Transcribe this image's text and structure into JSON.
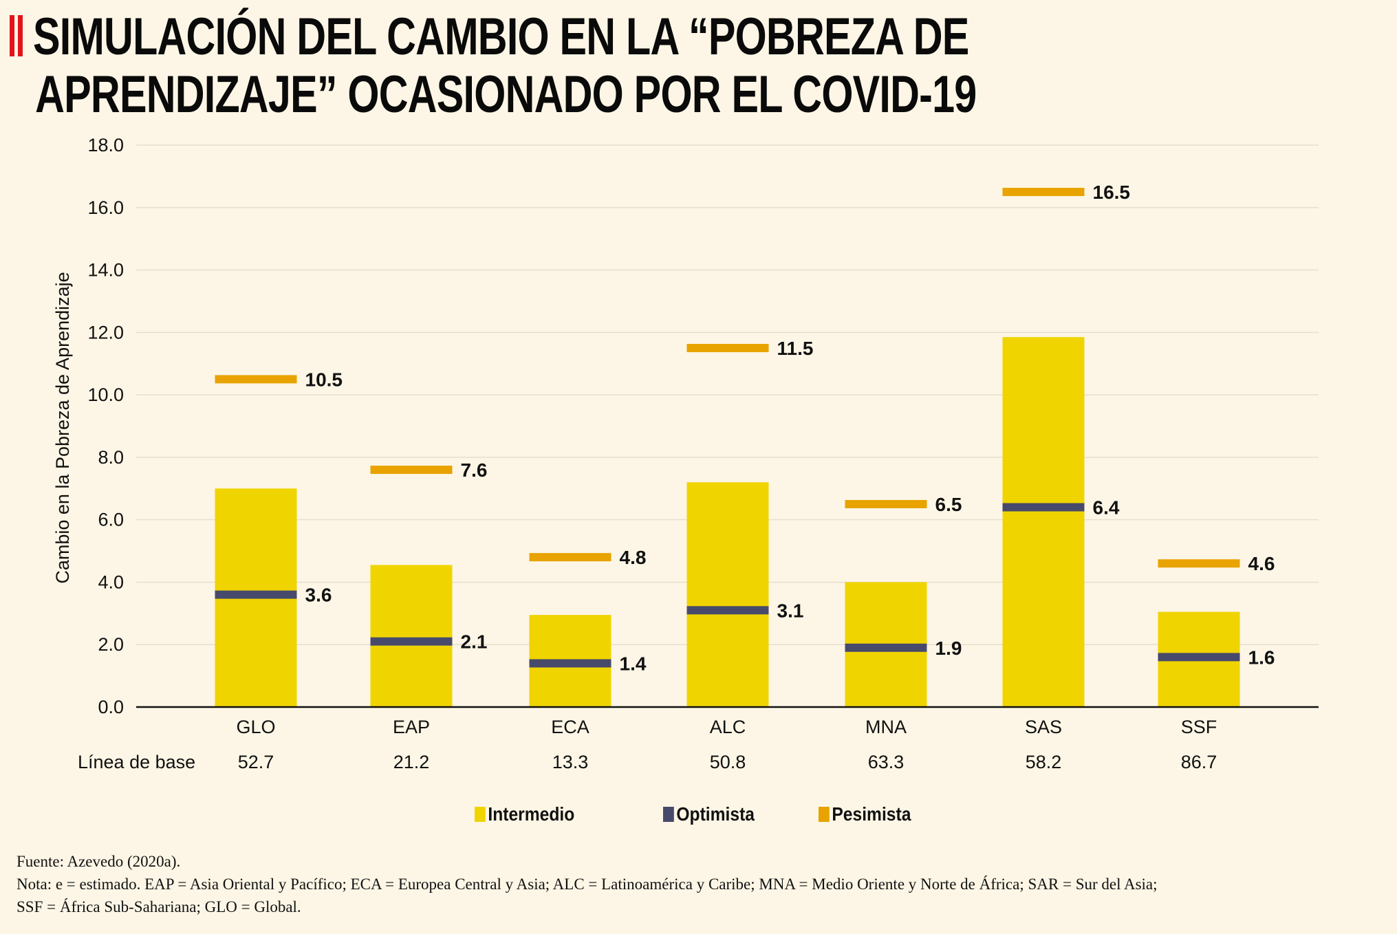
{
  "title_lines": [
    "SIMULACIÓN DEL CAMBIO EN LA “POBREZA DE",
    "APRENDIZAJE” OCASIONADO POR EL COVID-19"
  ],
  "chart_data": {
    "type": "bar",
    "title": "SIMULACIÓN DEL CAMBIO EN LA “POBREZA DE APRENDIZAJE” OCASIONADO POR EL COVID-19",
    "ylabel": "Cambio en la Pobreza de Aprendizaje",
    "xlabel": "",
    "ylim": [
      0,
      18
    ],
    "yticks": [
      "0.0",
      "2.0",
      "4.0",
      "6.0",
      "8.0",
      "10.0",
      "12.0",
      "14.0",
      "16.0",
      "18.0"
    ],
    "grid": true,
    "legend_position": "bottom",
    "categories": [
      "GLO",
      "EAP",
      "ECA",
      "ALC",
      "MNA",
      "SAS",
      "SSF"
    ],
    "baseline_label": "Línea de base",
    "baseline": [
      "52.7",
      "21.2",
      "13.3",
      "50.8",
      "63.3",
      "58.2",
      "86.7"
    ],
    "series": [
      {
        "name": "Intermedio",
        "kind": "bar",
        "color": "#f0d400",
        "values": [
          7.0,
          4.55,
          2.95,
          7.2,
          4.0,
          11.85,
          3.05
        ]
      },
      {
        "name": "Optimista",
        "kind": "marker",
        "color": "#474a6b",
        "values": [
          3.6,
          2.1,
          1.4,
          3.1,
          1.9,
          6.4,
          1.6
        ],
        "labels": [
          "3.6",
          "2.1",
          "1.4",
          "3.1",
          "1.9",
          "6.4",
          "1.6"
        ]
      },
      {
        "name": "Pesimista",
        "kind": "marker",
        "color": "#e8a300",
        "values": [
          10.5,
          7.6,
          4.8,
          11.5,
          6.5,
          16.5,
          4.6
        ],
        "labels": [
          "10.5",
          "7.6",
          "4.8",
          "11.5",
          "6.5",
          "16.5",
          "4.6"
        ]
      }
    ]
  },
  "footer": {
    "source": "Fuente: Azevedo (2020a).",
    "note_line1": "Nota: e = estimado. EAP = Asia Oriental y Pacífico; ECA = Europea Central y Asia; ALC = Latinoamérica y Caribe; MNA = Medio Oriente y Norte de África; SAR = Sur del Asia;",
    "note_line2": "SSF = África Sub-Sahariana; GLO = Global."
  }
}
